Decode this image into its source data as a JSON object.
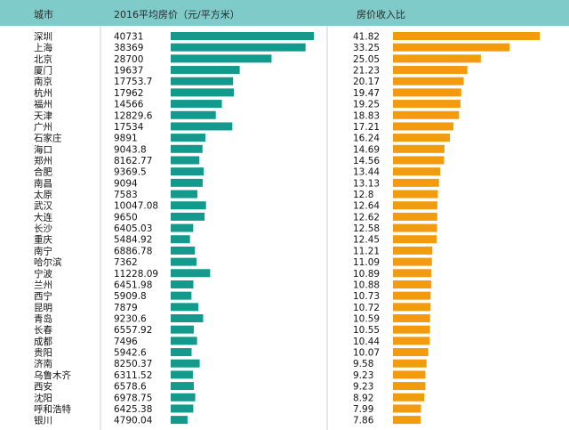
{
  "chart_data": {
    "type": "table",
    "columns": [
      "城市",
      "2016平均房价（元/平方米）",
      "房价收入比"
    ],
    "colors": {
      "header_bg": "#7ecbc9",
      "price_bar": "#149a8c",
      "ratio_bar": "#f29b0f"
    },
    "rows": [
      {
        "city": "深圳",
        "price": "40731",
        "ratio": "41.82"
      },
      {
        "city": "上海",
        "price": "38369",
        "ratio": "33.25"
      },
      {
        "city": "北京",
        "price": "28700",
        "ratio": "25.05"
      },
      {
        "city": "厦门",
        "price": "19637",
        "ratio": "21.23"
      },
      {
        "city": "南京",
        "price": "17753.7",
        "ratio": "20.17"
      },
      {
        "city": "杭州",
        "price": "17962",
        "ratio": "19.47"
      },
      {
        "city": "福州",
        "price": "14566",
        "ratio": "19.25"
      },
      {
        "city": "天津",
        "price": "12829.6",
        "ratio": "18.83"
      },
      {
        "city": "广州",
        "price": "17534",
        "ratio": "17.21"
      },
      {
        "city": "石家庄",
        "price": "9891",
        "ratio": "16.24"
      },
      {
        "city": "海口",
        "price": "9043.8",
        "ratio": "14.69"
      },
      {
        "city": "郑州",
        "price": "8162.77",
        "ratio": "14.56"
      },
      {
        "city": "合肥",
        "price": "9369.5",
        "ratio": "13.44"
      },
      {
        "city": "南昌",
        "price": "9094",
        "ratio": "13.13"
      },
      {
        "city": "太原",
        "price": "7583",
        "ratio": "12.8"
      },
      {
        "city": "武汉",
        "price": "10047.08",
        "ratio": "12.64"
      },
      {
        "city": "大连",
        "price": "9650",
        "ratio": "12.62"
      },
      {
        "city": "长沙",
        "price": "6405.03",
        "ratio": "12.58"
      },
      {
        "city": "重庆",
        "price": "5484.92",
        "ratio": "12.45"
      },
      {
        "city": "南宁",
        "price": "6886.78",
        "ratio": "11.21"
      },
      {
        "city": "哈尔滨",
        "price": "7362",
        "ratio": "11.09"
      },
      {
        "city": "宁波",
        "price": "11228.09",
        "ratio": "10.89"
      },
      {
        "city": "兰州",
        "price": "6451.98",
        "ratio": "10.88"
      },
      {
        "city": "西宁",
        "price": "5909.8",
        "ratio": "10.73"
      },
      {
        "city": "昆明",
        "price": "7879",
        "ratio": "10.72"
      },
      {
        "city": "青岛",
        "price": "9230.6",
        "ratio": "10.59"
      },
      {
        "city": "长春",
        "price": "6557.92",
        "ratio": "10.55"
      },
      {
        "city": "成都",
        "price": "7496",
        "ratio": "10.44"
      },
      {
        "city": "贵阳",
        "price": "5942.6",
        "ratio": "10.07"
      },
      {
        "city": "济南",
        "price": "8250.37",
        "ratio": "9.58"
      },
      {
        "city": "乌鲁木齐",
        "price": "6311.52",
        "ratio": "9.23"
      },
      {
        "city": "西安",
        "price": "6578.6",
        "ratio": "9.23"
      },
      {
        "city": "沈阳",
        "price": "6978.75",
        "ratio": "8.92"
      },
      {
        "city": "呼和浩特",
        "price": "6425.38",
        "ratio": "7.99"
      },
      {
        "city": "银川",
        "price": "4790.04",
        "ratio": "7.86"
      }
    ]
  }
}
